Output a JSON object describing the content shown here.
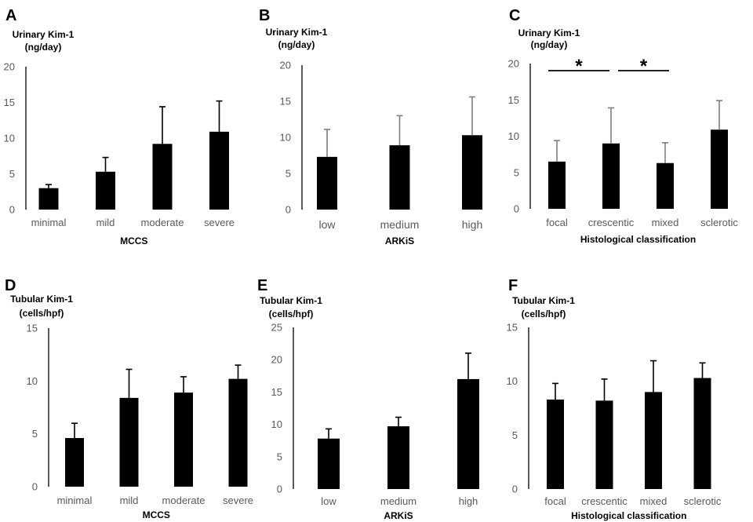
{
  "chart_data": [
    {
      "panel": "A",
      "type": "bar",
      "ylabel_line1": "Urinary Kim-1",
      "ylabel_line2": "(ng/day)",
      "xlabel": "MCCS",
      "categories": [
        "minimal",
        "mild",
        "moderate",
        "severe"
      ],
      "values": [
        3.0,
        5.3,
        9.2,
        10.9
      ],
      "errors": [
        0.5,
        2.0,
        5.2,
        4.3
      ],
      "ylim": [
        0,
        20
      ],
      "yticks": [
        0,
        5,
        10,
        15,
        20
      ],
      "error_color": "#000000"
    },
    {
      "panel": "B",
      "type": "bar",
      "ylabel_line1": "Urinary Kim-1",
      "ylabel_line2": "(ng/day)",
      "xlabel": "ARKiS",
      "categories": [
        "low",
        "medium",
        "high"
      ],
      "values": [
        7.3,
        8.9,
        10.3
      ],
      "errors": [
        3.8,
        4.1,
        5.3
      ],
      "ylim": [
        0,
        20
      ],
      "yticks": [
        0,
        5,
        10,
        15,
        20
      ],
      "error_color": "#7f7f7f"
    },
    {
      "panel": "C",
      "type": "bar",
      "ylabel_line1": "Urinary Kim-1",
      "ylabel_line2": "(ng/day)",
      "xlabel": "Histological classification",
      "categories": [
        "focal",
        "crescentic",
        "mixed",
        "sclerotic"
      ],
      "values": [
        6.5,
        9.0,
        6.3,
        10.9
      ],
      "errors": [
        2.9,
        4.9,
        2.8,
        4.0
      ],
      "ylim": [
        0,
        20
      ],
      "yticks": [
        0,
        5,
        10,
        15,
        20
      ],
      "error_color": "#7f7f7f",
      "significance": [
        {
          "from": 0,
          "to": 1,
          "label": "*"
        },
        {
          "from": 1,
          "to": 2,
          "label": "*"
        }
      ]
    },
    {
      "panel": "D",
      "type": "bar",
      "ylabel_line1": "Tubular Kim-1",
      "ylabel_line2": "(cells/hpf)",
      "xlabel": "MCCS",
      "categories": [
        "minimal",
        "mild",
        "moderate",
        "severe"
      ],
      "values": [
        4.6,
        8.4,
        8.9,
        10.2
      ],
      "errors": [
        1.4,
        2.7,
        1.5,
        1.3
      ],
      "ylim": [
        0,
        15
      ],
      "yticks": [
        0,
        5,
        10,
        15
      ],
      "error_color": "#000000"
    },
    {
      "panel": "E",
      "type": "bar",
      "ylabel_line1": "Tubular Kim-1",
      "ylabel_line2": "(cells/hpf)",
      "xlabel": "ARKiS",
      "categories": [
        "low",
        "medium",
        "high"
      ],
      "values": [
        7.8,
        9.7,
        17.0
      ],
      "errors": [
        1.5,
        1.4,
        4.0
      ],
      "ylim": [
        0,
        25
      ],
      "yticks": [
        0,
        5,
        10,
        15,
        20,
        25
      ],
      "error_color": "#000000"
    },
    {
      "panel": "F",
      "type": "bar",
      "ylabel_line1": "Tubular Kim-1",
      "ylabel_line2": "(cells/hpf)",
      "xlabel": "Histological classification",
      "categories": [
        "focal",
        "crescentic",
        "mixed",
        "sclerotic"
      ],
      "values": [
        8.3,
        8.2,
        9.0,
        10.3
      ],
      "errors": [
        1.5,
        2.0,
        2.9,
        1.4
      ],
      "ylim": [
        0,
        15
      ],
      "yticks": [
        0,
        5,
        10,
        15
      ],
      "error_color": "#000000"
    }
  ]
}
